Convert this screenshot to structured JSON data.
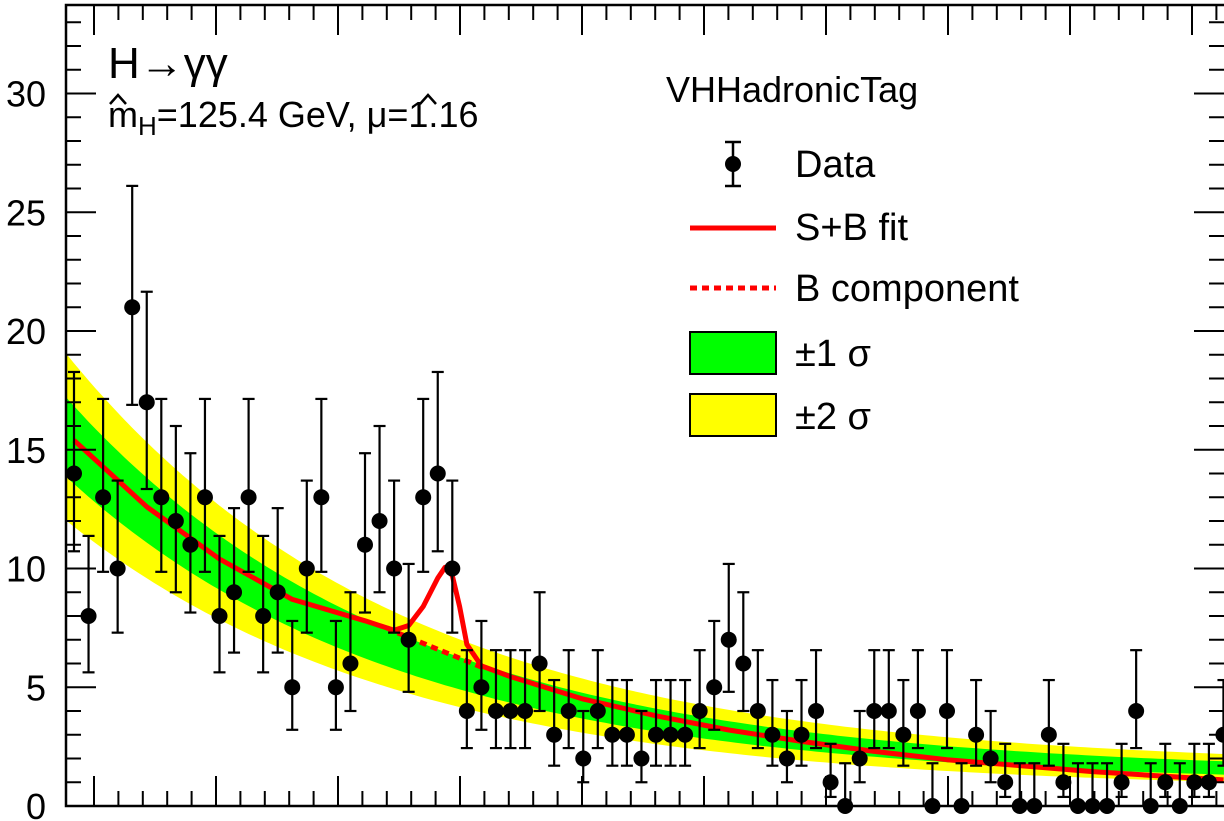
{
  "chart_data": {
    "type": "scatter",
    "title": "",
    "xlabel": "",
    "ylabel": "",
    "ylim": [
      0,
      33
    ],
    "xlim": [
      0,
      80
    ],
    "yticks": [
      0,
      5,
      10,
      15,
      20,
      25,
      30
    ],
    "y_tick_labels": [
      "0",
      "5",
      "10",
      "15",
      "20",
      "25",
      "30"
    ],
    "grid": false,
    "legend_position": "top-right",
    "annotations": {
      "process": "H→γγ",
      "fit_mH_prefix": "m",
      "fit_mH_sub": "H",
      "fit_mH_value": "=125.4 GeV, ",
      "fit_mu_symbol": "μ",
      "fit_mu_value": "=1.16",
      "category": "VHHadronicTag"
    },
    "legend": [
      {
        "label": "Data",
        "kind": "marker"
      },
      {
        "label": "S+B fit",
        "kind": "solid-line"
      },
      {
        "label": "B component",
        "kind": "dashed-line"
      },
      {
        "label": "±1 σ",
        "kind": "green-band"
      },
      {
        "label": "±2 σ",
        "kind": "yellow-band"
      }
    ],
    "colors": {
      "data": "#000000",
      "fit": "#ff0000",
      "band_1sigma": "#00ff00",
      "band_2sigma": "#ffff00"
    },
    "series": [
      {
        "name": "Data",
        "x": [
          0,
          1,
          2,
          3,
          4,
          5,
          6,
          7,
          8,
          9,
          10,
          11,
          12,
          13,
          14,
          15,
          16,
          17,
          18,
          19,
          20,
          21,
          22,
          23,
          24,
          25,
          26,
          27,
          28,
          29,
          30,
          31,
          32,
          33,
          34,
          35,
          36,
          37,
          38,
          39,
          40,
          41,
          42,
          43,
          44,
          45,
          46,
          47,
          48,
          49,
          50,
          51,
          52,
          53,
          54,
          55,
          56,
          57,
          58,
          59,
          60,
          61,
          62,
          63,
          64,
          65,
          66,
          67,
          68,
          69,
          70,
          71,
          72,
          73,
          74,
          75,
          76,
          77,
          78,
          79
        ],
        "y": [
          14,
          8,
          13,
          10,
          21,
          17,
          13,
          12,
          11,
          13,
          8,
          9,
          13,
          8,
          9,
          5,
          10,
          13,
          5,
          6,
          11,
          12,
          10,
          7,
          13,
          14,
          10,
          4,
          5,
          4,
          4,
          4,
          6,
          3,
          4,
          2,
          4,
          3,
          3,
          2,
          3,
          3,
          3,
          4,
          5,
          7,
          6,
          4,
          3,
          2,
          3,
          4,
          1,
          0,
          2,
          4,
          4,
          3,
          4,
          0,
          4,
          0,
          3,
          2,
          1,
          0,
          0,
          3,
          1,
          0,
          0,
          0,
          1,
          4,
          0,
          1,
          0,
          1,
          1,
          3
        ]
      },
      {
        "name": "S+B fit",
        "x": [
          0,
          5,
          10,
          15,
          20,
          22,
          23,
          24,
          25,
          25.5,
          26,
          26.5,
          27,
          28,
          30,
          35,
          40,
          45,
          50,
          55,
          60,
          65,
          70,
          75,
          79
        ],
        "y": [
          15.4,
          12.6,
          10.4,
          8.7,
          7.8,
          7.4,
          7.6,
          8.4,
          9.6,
          10.05,
          9.7,
          8.4,
          6.8,
          5.9,
          5.45,
          4.5,
          3.8,
          3.2,
          2.72,
          2.3,
          1.95,
          1.7,
          1.45,
          1.25,
          1.1
        ]
      },
      {
        "name": "B component",
        "x": [
          21.5,
          22,
          23,
          24,
          25,
          26,
          27,
          28
        ],
        "y": [
          7.5,
          7.35,
          7.1,
          6.85,
          6.6,
          6.35,
          6.1,
          5.85
        ]
      }
    ]
  }
}
